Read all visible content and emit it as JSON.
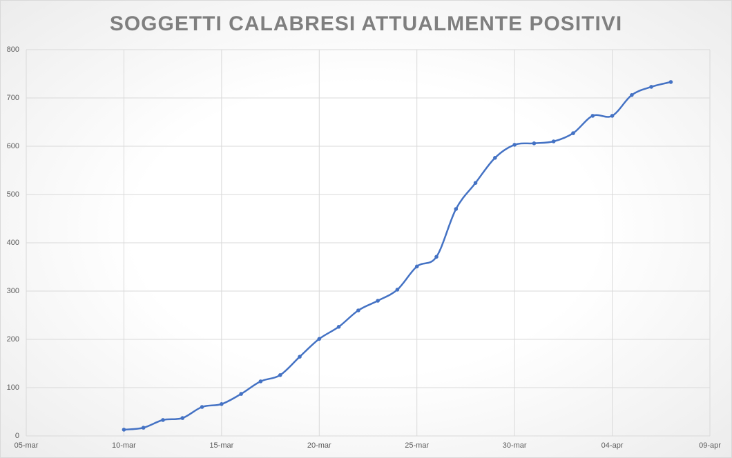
{
  "chart_data": {
    "type": "line",
    "title": "SOGGETTI CALABRESI ATTUALMENTE POSITIVI",
    "categories": [
      "05-mar",
      null,
      null,
      null,
      null,
      "10-mar",
      null,
      null,
      null,
      null,
      "15-mar",
      null,
      null,
      null,
      null,
      "20-mar",
      null,
      null,
      null,
      null,
      "25-mar",
      null,
      null,
      null,
      null,
      "30-mar",
      null,
      null,
      null,
      null,
      "04-apr",
      null,
      null,
      null,
      null,
      "09-apr"
    ],
    "series": [
      {
        "color": "#4472c4",
        "values": [
          null,
          null,
          null,
          null,
          null,
          13,
          17,
          33,
          37,
          60,
          66,
          87,
          113,
          126,
          164,
          201,
          226,
          260,
          280,
          303,
          351,
          371,
          470,
          524,
          576,
          603,
          606,
          610,
          627,
          663,
          663,
          706,
          723,
          733,
          null,
          null
        ]
      }
    ],
    "ylim": [
      0,
      800
    ],
    "yticks": [
      0,
      100,
      200,
      300,
      400,
      500,
      600,
      700,
      800
    ],
    "grid": true
  }
}
